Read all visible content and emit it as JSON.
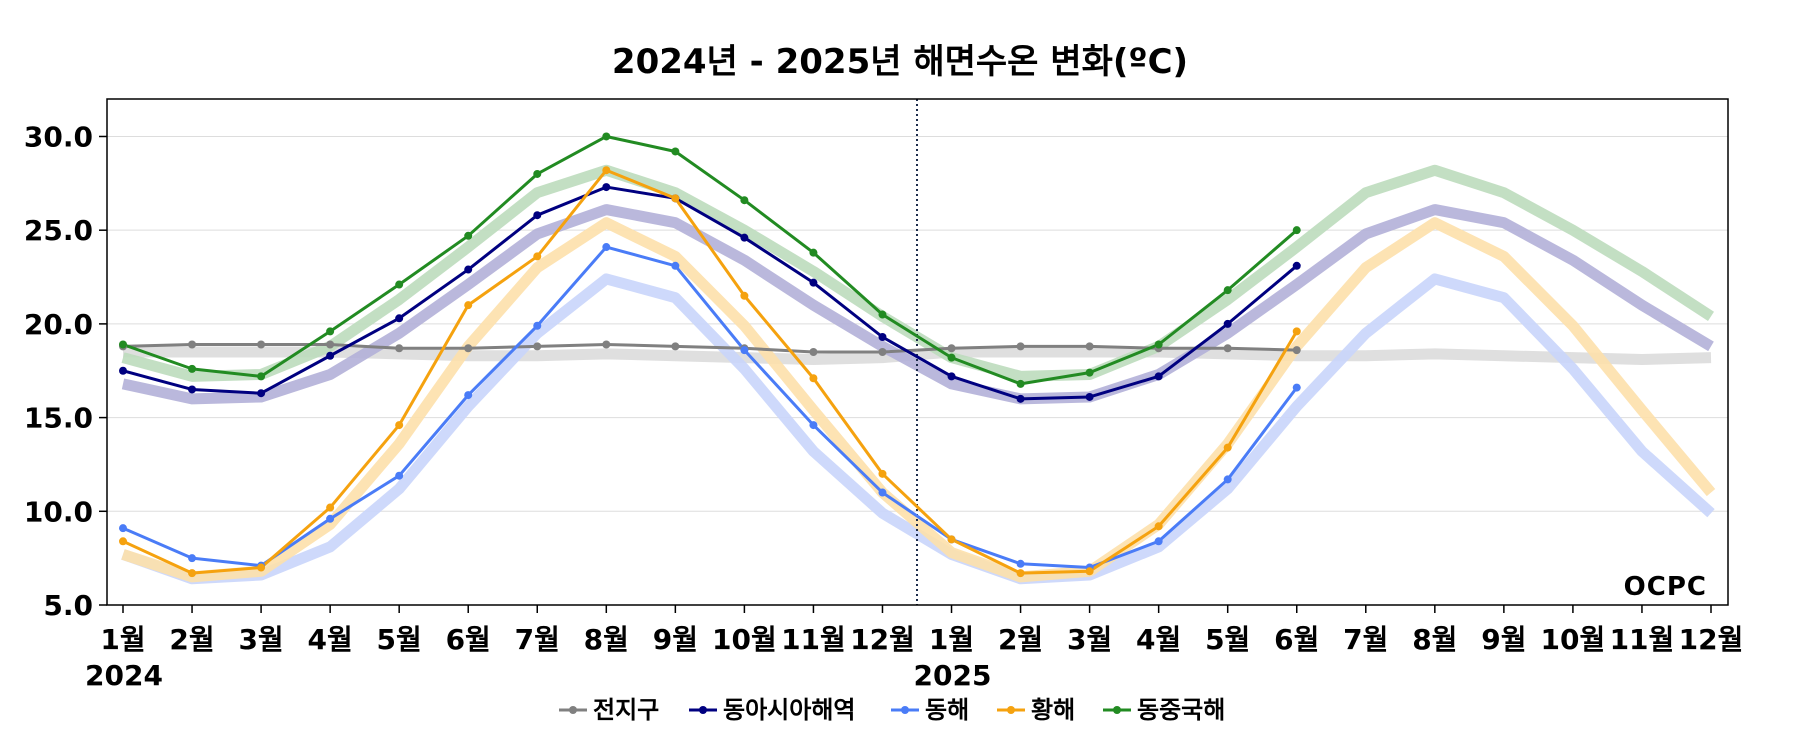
{
  "chart_data": {
    "type": "line",
    "title": "2024년 - 2025년 해면수온 변화(ºC)",
    "xlabel": "",
    "ylabel": "",
    "ylim": [
      5.0,
      32.0
    ],
    "yticks": [
      "5.0",
      "10.0",
      "15.0",
      "20.0",
      "25.0",
      "30.0"
    ],
    "categories": [
      "1월",
      "2월",
      "3월",
      "4월",
      "5월",
      "6월",
      "7월",
      "8월",
      "9월",
      "10월",
      "11월",
      "12월",
      "1월",
      "2월",
      "3월",
      "4월",
      "5월",
      "6월",
      "7월",
      "8월",
      "9월",
      "10월",
      "11월",
      "12월"
    ],
    "year_labels": [
      {
        "index": 0,
        "label": "2024"
      },
      {
        "index": 12,
        "label": "2025"
      }
    ],
    "divider_between": [
      11,
      12
    ],
    "grid": true,
    "legend_position": "bottom",
    "watermark": "OCPC",
    "series": [
      {
        "name": "전지구",
        "color": "#808080",
        "values": [
          18.8,
          18.9,
          18.9,
          18.9,
          18.7,
          18.7,
          18.8,
          18.9,
          18.8,
          18.7,
          18.5,
          18.5,
          18.7,
          18.8,
          18.8,
          18.7,
          18.7,
          18.6,
          null,
          null,
          null,
          null,
          null,
          null
        ],
        "climatology": [
          18.5,
          18.5,
          18.5,
          18.5,
          18.4,
          18.3,
          18.3,
          18.4,
          18.3,
          18.2,
          18.1,
          18.2,
          18.5,
          18.5,
          18.5,
          18.5,
          18.4,
          18.3,
          18.3,
          18.4,
          18.3,
          18.2,
          18.1,
          18.2
        ],
        "band_color": "#dcdcdc"
      },
      {
        "name": "동아시아해역",
        "color": "#000080",
        "values": [
          17.5,
          16.5,
          16.3,
          18.3,
          20.3,
          22.9,
          25.8,
          27.3,
          26.7,
          24.6,
          22.2,
          19.3,
          17.2,
          16.0,
          16.1,
          17.2,
          20.0,
          23.1,
          null,
          null,
          null,
          null,
          null,
          null
        ],
        "climatology": [
          16.8,
          16.0,
          16.1,
          17.3,
          19.5,
          22.1,
          24.8,
          26.1,
          25.4,
          23.4,
          21.0,
          18.8,
          16.8,
          16.0,
          16.1,
          17.3,
          19.5,
          22.1,
          24.8,
          26.1,
          25.4,
          23.4,
          21.0,
          18.8
        ],
        "band_color": "#b3b0d8"
      },
      {
        "name": "동해",
        "color": "#4a7cf7",
        "values": [
          9.1,
          7.5,
          7.1,
          9.6,
          11.9,
          16.2,
          19.9,
          24.1,
          23.1,
          18.6,
          14.6,
          11.0,
          8.5,
          7.2,
          7.0,
          8.4,
          11.7,
          16.6,
          null,
          null,
          null,
          null,
          null,
          null
        ],
        "climatology": [
          7.7,
          6.4,
          6.6,
          8.1,
          11.2,
          15.6,
          19.5,
          22.4,
          21.4,
          17.6,
          13.2,
          9.9,
          7.7,
          6.4,
          6.6,
          8.1,
          11.2,
          15.6,
          19.5,
          22.4,
          21.4,
          17.6,
          13.2,
          9.9
        ],
        "band_color": "#c9d5fb"
      },
      {
        "name": "황해",
        "color": "#f5a20f",
        "values": [
          8.4,
          6.7,
          7.0,
          10.2,
          14.6,
          21.0,
          23.6,
          28.2,
          26.7,
          21.5,
          17.1,
          12.0,
          8.5,
          6.7,
          6.8,
          9.2,
          13.4,
          19.6,
          null,
          null,
          null,
          null,
          null,
          null
        ],
        "climatology": [
          7.7,
          6.5,
          6.8,
          9.3,
          13.6,
          18.8,
          23.0,
          25.4,
          23.6,
          19.9,
          15.4,
          11.0,
          7.8,
          6.5,
          6.8,
          9.3,
          13.6,
          18.8,
          23.0,
          25.4,
          23.6,
          19.9,
          15.4,
          11.0
        ],
        "band_color": "#fde0ab"
      },
      {
        "name": "동중국해",
        "color": "#228b22",
        "values": [
          18.9,
          17.6,
          17.2,
          19.6,
          22.1,
          24.7,
          28.0,
          30.0,
          29.2,
          26.6,
          23.8,
          20.5,
          18.2,
          16.8,
          17.4,
          18.9,
          21.8,
          25.0,
          null,
          null,
          null,
          null,
          null,
          null
        ],
        "climatology": [
          18.2,
          17.2,
          17.3,
          18.8,
          21.3,
          24.1,
          27.0,
          28.2,
          27.0,
          25.0,
          22.8,
          20.4,
          18.2,
          17.2,
          17.3,
          18.8,
          21.3,
          24.1,
          27.0,
          28.2,
          27.0,
          25.0,
          22.8,
          20.4
        ],
        "band_color": "#bcdcbc"
      }
    ]
  }
}
